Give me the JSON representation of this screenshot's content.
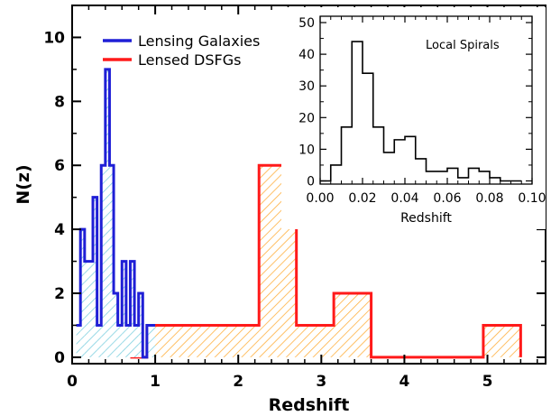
{
  "chart_data": [
    {
      "type": "histogram",
      "xlabel": "Redshift",
      "ylabel": "N(z)",
      "xlim": [
        0,
        5.7
      ],
      "ylim": [
        -0.2,
        11
      ],
      "xticks": [
        "0",
        "1",
        "2",
        "3",
        "4",
        "5"
      ],
      "yticks": [
        "0",
        "2",
        "4",
        "6",
        "8",
        "10"
      ],
      "legend": {
        "placement": "top-left"
      },
      "series": [
        {
          "name": "Lensing Galaxies",
          "color": "#1f1fd6",
          "fill": "#7fd0e0",
          "hatch": "diagonal",
          "bin_width": 0.05,
          "bins": [
            {
              "x": 0.05,
              "count": 1
            },
            {
              "x": 0.1,
              "count": 4
            },
            {
              "x": 0.15,
              "count": 3
            },
            {
              "x": 0.2,
              "count": 3
            },
            {
              "x": 0.25,
              "count": 5
            },
            {
              "x": 0.3,
              "count": 1
            },
            {
              "x": 0.35,
              "count": 6
            },
            {
              "x": 0.4,
              "count": 9
            },
            {
              "x": 0.45,
              "count": 6
            },
            {
              "x": 0.5,
              "count": 2
            },
            {
              "x": 0.55,
              "count": 1
            },
            {
              "x": 0.6,
              "count": 3
            },
            {
              "x": 0.65,
              "count": 1
            },
            {
              "x": 0.7,
              "count": 3
            },
            {
              "x": 0.75,
              "count": 1
            },
            {
              "x": 0.8,
              "count": 2
            },
            {
              "x": 0.85,
              "count": 0
            },
            {
              "x": 0.9,
              "count": 1
            },
            {
              "x": 0.95,
              "count": 1
            }
          ]
        },
        {
          "name": "Lensed DSFGs",
          "color": "#ff1a1a",
          "fill": "#ffb040",
          "hatch": "diagonal",
          "bins": [
            {
              "x": 0.7,
              "count": 0
            },
            {
              "x": 0.9,
              "count": 1
            },
            {
              "x": 2.25,
              "count": 6
            },
            {
              "x": 2.7,
              "count": 1
            },
            {
              "x": 3.15,
              "count": 2
            },
            {
              "x": 3.6,
              "count": 0
            },
            {
              "x": 4.95,
              "count": 1
            },
            {
              "x": 5.4,
              "count": 0
            }
          ]
        }
      ]
    },
    {
      "type": "histogram",
      "inset": true,
      "xlabel": "Redshift",
      "ylabel": "",
      "annotation": "Local Spirals",
      "xlim": [
        0,
        0.1
      ],
      "ylim": [
        -1,
        52
      ],
      "xticks": [
        "0.00",
        "0.02",
        "0.04",
        "0.06",
        "0.08",
        "0.10"
      ],
      "yticks": [
        "0",
        "10",
        "20",
        "30",
        "40",
        "50"
      ],
      "series": [
        {
          "color": "#000000",
          "bin_width": 0.005,
          "bins": [
            {
              "x": 0.0,
              "count": 0
            },
            {
              "x": 0.005,
              "count": 5
            },
            {
              "x": 0.01,
              "count": 17
            },
            {
              "x": 0.015,
              "count": 44
            },
            {
              "x": 0.02,
              "count": 34
            },
            {
              "x": 0.025,
              "count": 17
            },
            {
              "x": 0.03,
              "count": 9
            },
            {
              "x": 0.035,
              "count": 13
            },
            {
              "x": 0.04,
              "count": 14
            },
            {
              "x": 0.045,
              "count": 7
            },
            {
              "x": 0.05,
              "count": 3
            },
            {
              "x": 0.055,
              "count": 3
            },
            {
              "x": 0.06,
              "count": 4
            },
            {
              "x": 0.065,
              "count": 1
            },
            {
              "x": 0.07,
              "count": 4
            },
            {
              "x": 0.075,
              "count": 3
            },
            {
              "x": 0.08,
              "count": 1
            },
            {
              "x": 0.085,
              "count": 0
            },
            {
              "x": 0.09,
              "count": 0
            }
          ]
        }
      ]
    }
  ]
}
